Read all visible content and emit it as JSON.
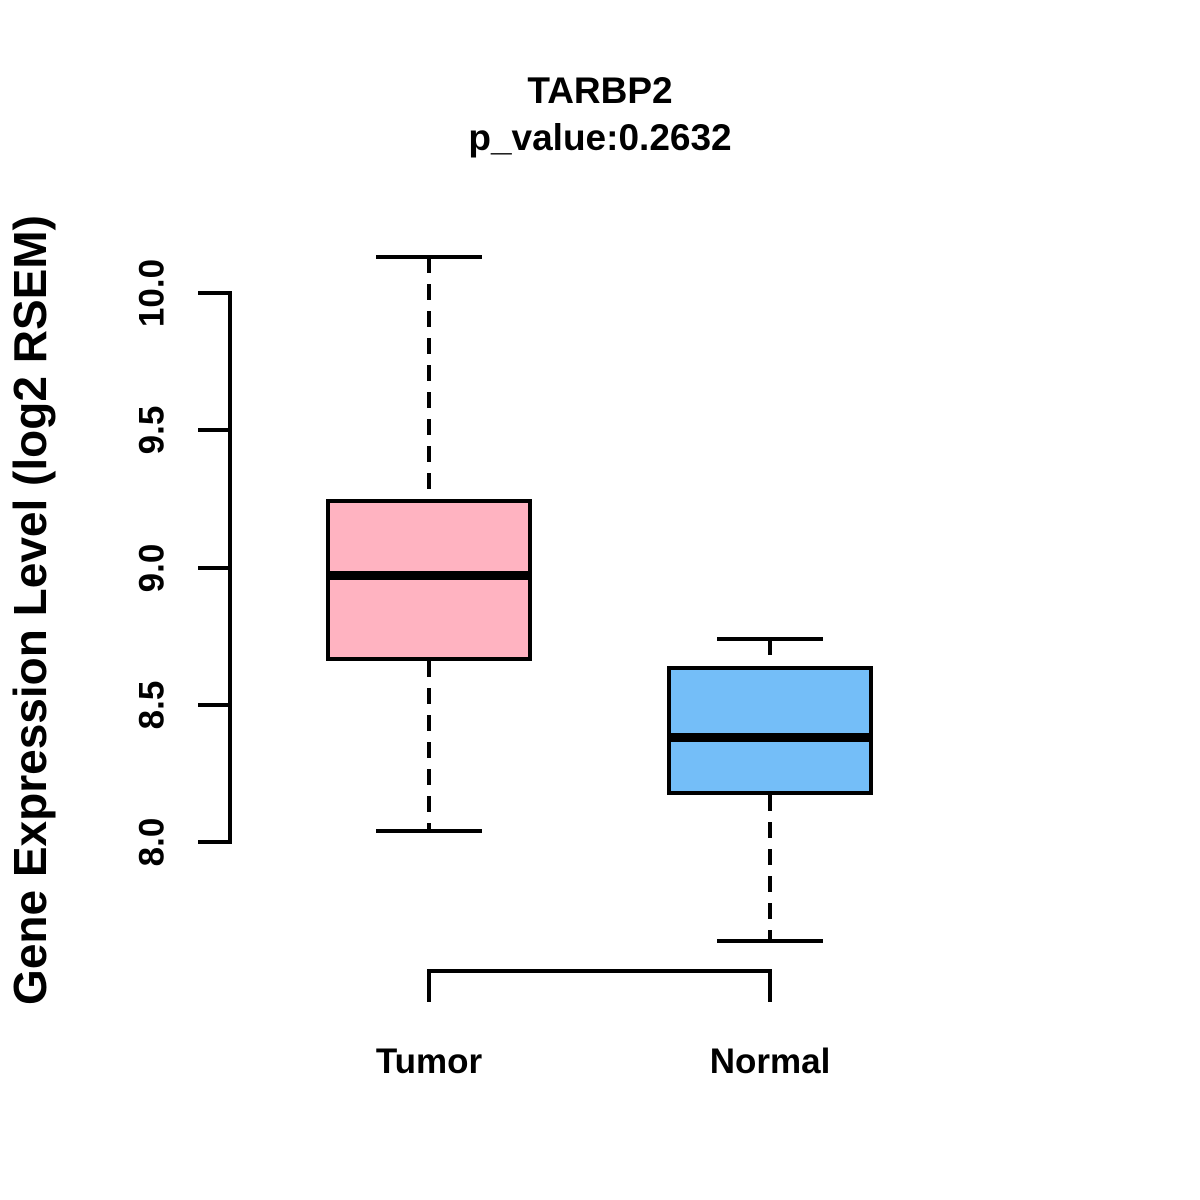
{
  "chart_data": {
    "type": "boxplot",
    "title": "TARBP2",
    "subtitle": "p_value:0.2632",
    "p_value": 0.2632,
    "ylabel": "Gene Expression Level (log2 RSEM)",
    "xlabel": "",
    "categories": [
      "Tumor",
      "Normal"
    ],
    "yticks": [
      8.0,
      8.5,
      9.0,
      9.5,
      10.0
    ],
    "ytick_labels": [
      "8.0",
      "8.5",
      "9.0",
      "9.5",
      "10.0"
    ],
    "ylim": [
      7.5,
      10.2
    ],
    "grid": false,
    "legend": "none",
    "line_color": "#000000",
    "background_color": "#ffffff",
    "whisker_style": "dashed",
    "series": [
      {
        "name": "Tumor",
        "box_color": "#FFB3C1",
        "border_color": "#000000",
        "lower_whisker": 8.04,
        "q1": 8.66,
        "median": 8.97,
        "q3": 9.25,
        "upper_whisker": 10.13
      },
      {
        "name": "Normal",
        "box_color": "#74BEF8",
        "border_color": "#000000",
        "lower_whisker": 7.64,
        "q1": 8.17,
        "median": 8.38,
        "q3": 8.64,
        "upper_whisker": 8.74
      }
    ]
  }
}
